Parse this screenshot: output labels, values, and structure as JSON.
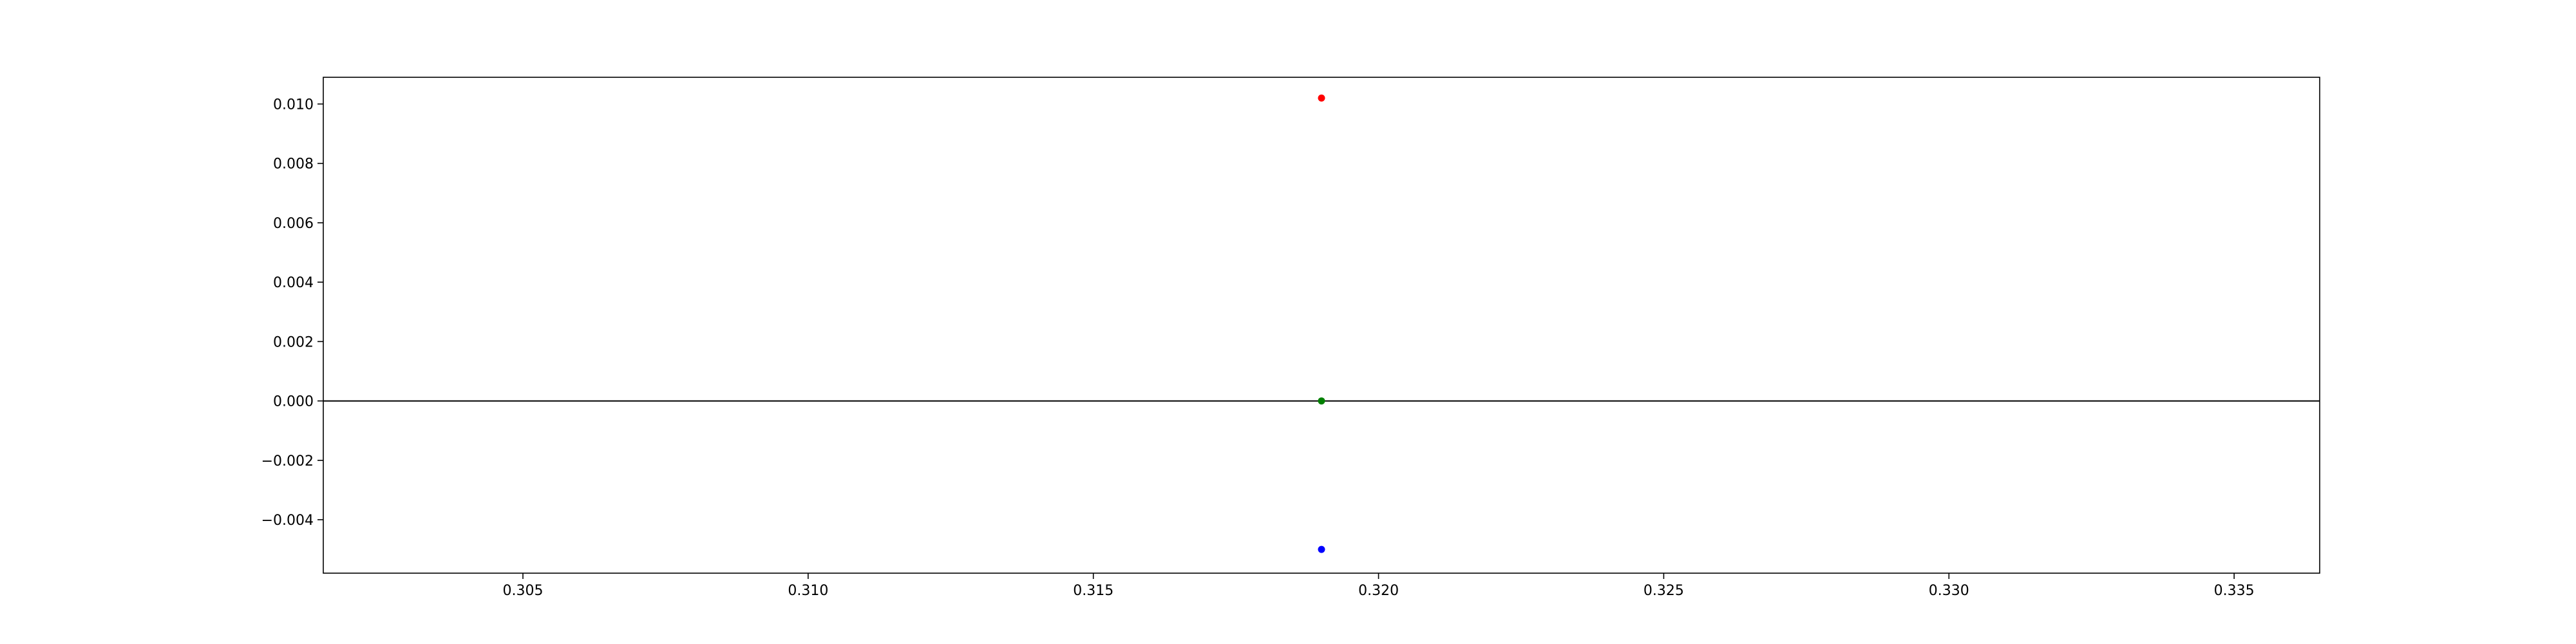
{
  "chart_data": {
    "type": "scatter",
    "xlim": [
      0.3015,
      0.3365
    ],
    "ylim": [
      -0.0058,
      0.0109
    ],
    "x_ticks": [
      0.305,
      0.31,
      0.315,
      0.32,
      0.325,
      0.33,
      0.335
    ],
    "x_tick_labels": [
      "0.305",
      "0.310",
      "0.315",
      "0.320",
      "0.325",
      "0.330",
      "0.335"
    ],
    "y_ticks": [
      -0.004,
      -0.002,
      0.0,
      0.002,
      0.004,
      0.006,
      0.008,
      0.01
    ],
    "y_tick_labels": [
      "−0.004",
      "−0.002",
      "0.000",
      "0.002",
      "0.004",
      "0.006",
      "0.008",
      "0.010"
    ],
    "grid": false,
    "legend": "none",
    "reference_line": {
      "y": 0.0,
      "color": "#000000"
    },
    "points": [
      {
        "x": 0.319,
        "y": 0.0102,
        "color": "#ff0000"
      },
      {
        "x": 0.319,
        "y": 0.0,
        "color": "#008000"
      },
      {
        "x": 0.319,
        "y": -0.005,
        "color": "#0000ff"
      }
    ]
  }
}
